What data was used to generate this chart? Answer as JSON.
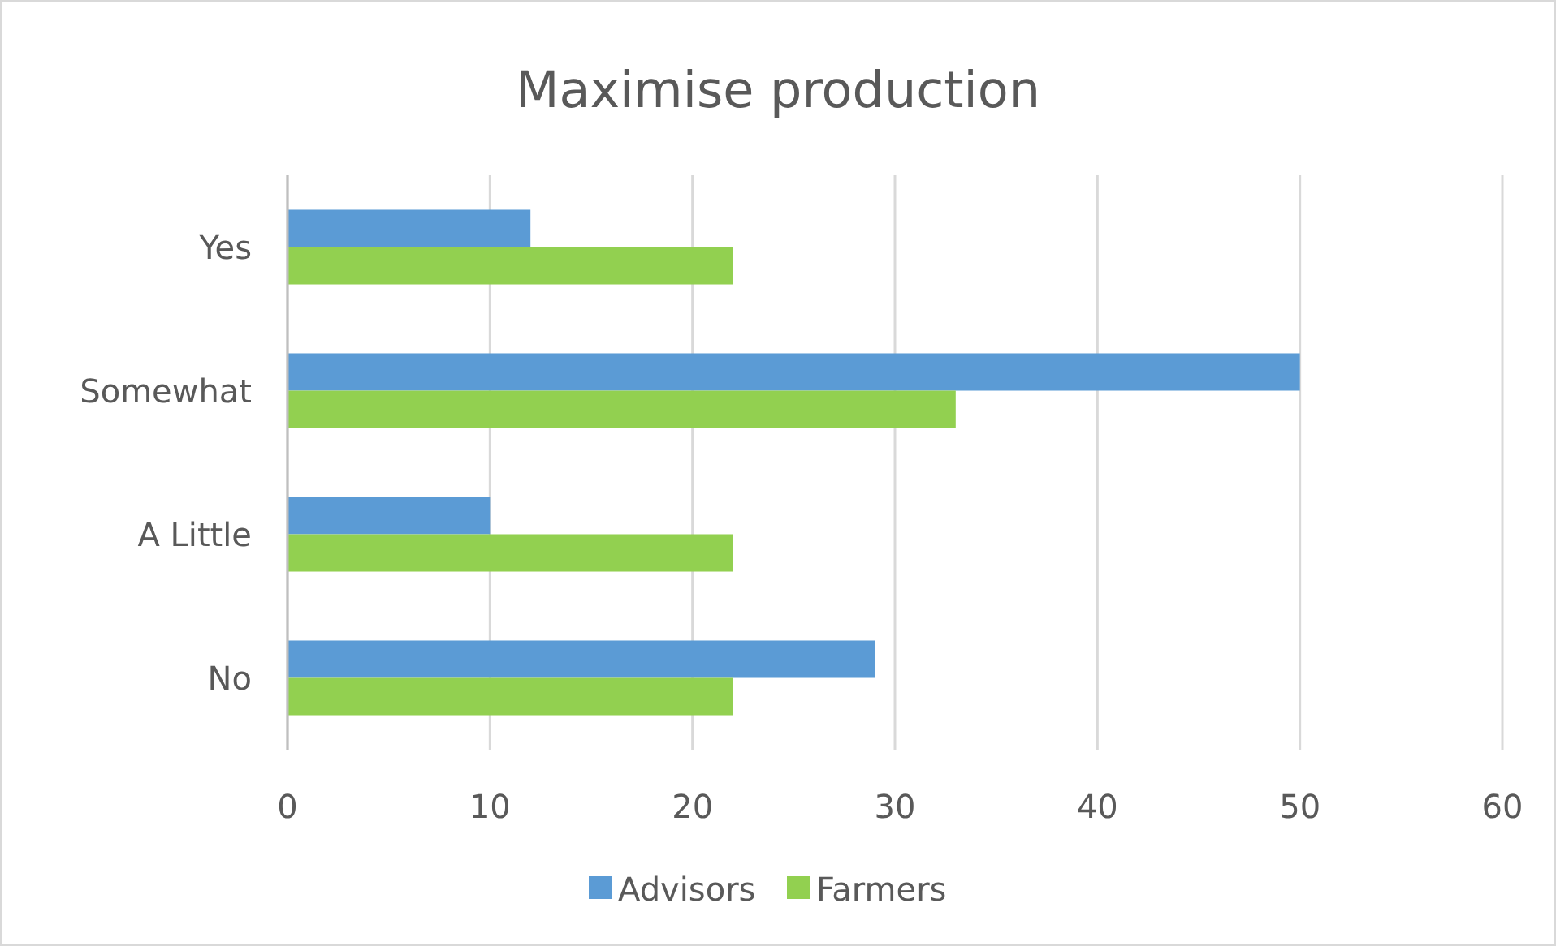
{
  "chart_data": {
    "type": "bar",
    "orientation": "horizontal",
    "title": "Maximise production",
    "categories": [
      "Yes",
      "Somewhat",
      "A Little",
      "No"
    ],
    "series": [
      {
        "name": "Advisors",
        "color": "#5b9bd5",
        "values": [
          12,
          50,
          10,
          29
        ]
      },
      {
        "name": "Farmers",
        "color": "#92d050",
        "values": [
          22,
          33,
          22,
          22
        ]
      }
    ],
    "xlim": [
      0,
      60
    ],
    "xticks": [
      0,
      10,
      20,
      30,
      40,
      50,
      60
    ],
    "grid": "x",
    "legend": "bottom"
  }
}
